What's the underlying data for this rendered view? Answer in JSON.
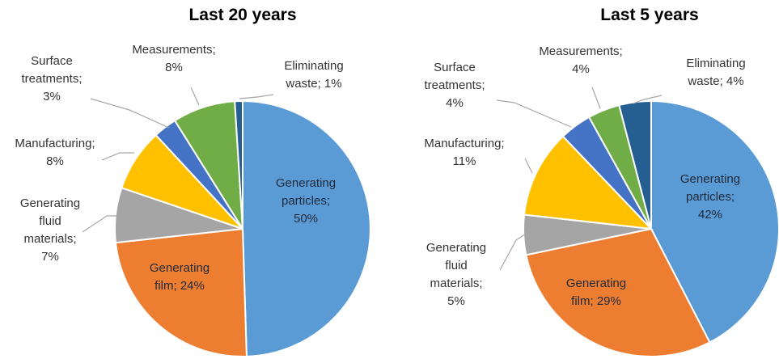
{
  "chart_data": [
    {
      "type": "pie",
      "title": "Last 20 years",
      "slices": [
        {
          "label_lines": [
            "Generating",
            "particles;",
            "50%"
          ],
          "name": "Generating particles",
          "value": 50,
          "color": "#5b9bd5"
        },
        {
          "label_lines": [
            "Generating",
            "film; 24%"
          ],
          "name": "Generating film",
          "value": 24,
          "color": "#ed7d31"
        },
        {
          "label_lines": [
            "Generating",
            "fluid",
            "materials;",
            "7%"
          ],
          "name": "Generating fluid materials",
          "value": 7,
          "color": "#a5a5a5"
        },
        {
          "label_lines": [
            "Manufacturing;",
            "8%"
          ],
          "name": "Manufacturing",
          "value": 8,
          "color": "#ffc000"
        },
        {
          "label_lines": [
            "Surface",
            "treatments;",
            "3%"
          ],
          "name": "Surface treatments",
          "value": 3,
          "color": "#4472c4"
        },
        {
          "label_lines": [
            "Measurements;",
            "8%"
          ],
          "name": "Measurements",
          "value": 8,
          "color": "#70ad47"
        },
        {
          "label_lines": [
            "Eliminating",
            "waste; 1%"
          ],
          "name": "Eliminating waste",
          "value": 1,
          "color": "#255e91"
        }
      ]
    },
    {
      "type": "pie",
      "title": "Last 5 years",
      "slices": [
        {
          "label_lines": [
            "Generating",
            "particles;",
            "42%"
          ],
          "name": "Generating particles",
          "value": 42,
          "color": "#5b9bd5"
        },
        {
          "label_lines": [
            "Generating",
            "film; 29%"
          ],
          "name": "Generating film",
          "value": 29,
          "color": "#ed7d31"
        },
        {
          "label_lines": [
            "Generating",
            "fluid",
            "materials;",
            "5%"
          ],
          "name": "Generating fluid materials",
          "value": 5,
          "color": "#a5a5a5"
        },
        {
          "label_lines": [
            "Manufacturing;",
            "11%"
          ],
          "name": "Manufacturing",
          "value": 11,
          "color": "#ffc000"
        },
        {
          "label_lines": [
            "Surface",
            "treatments;",
            "4%"
          ],
          "name": "Surface treatments",
          "value": 4,
          "color": "#4472c4"
        },
        {
          "label_lines": [
            "Measurements;",
            "4%"
          ],
          "name": "Measurements",
          "value": 4,
          "color": "#70ad47"
        },
        {
          "label_lines": [
            "Eliminating",
            "waste; 4%"
          ],
          "name": "Eliminating waste",
          "value": 4,
          "color": "#255e91"
        }
      ]
    }
  ]
}
